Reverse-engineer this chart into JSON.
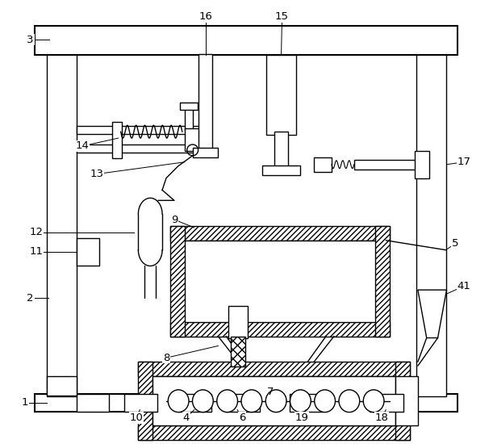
{
  "figure_width": 6.11,
  "figure_height": 5.5,
  "dpi": 100,
  "bg_color": "#ffffff",
  "line_color": "#000000"
}
